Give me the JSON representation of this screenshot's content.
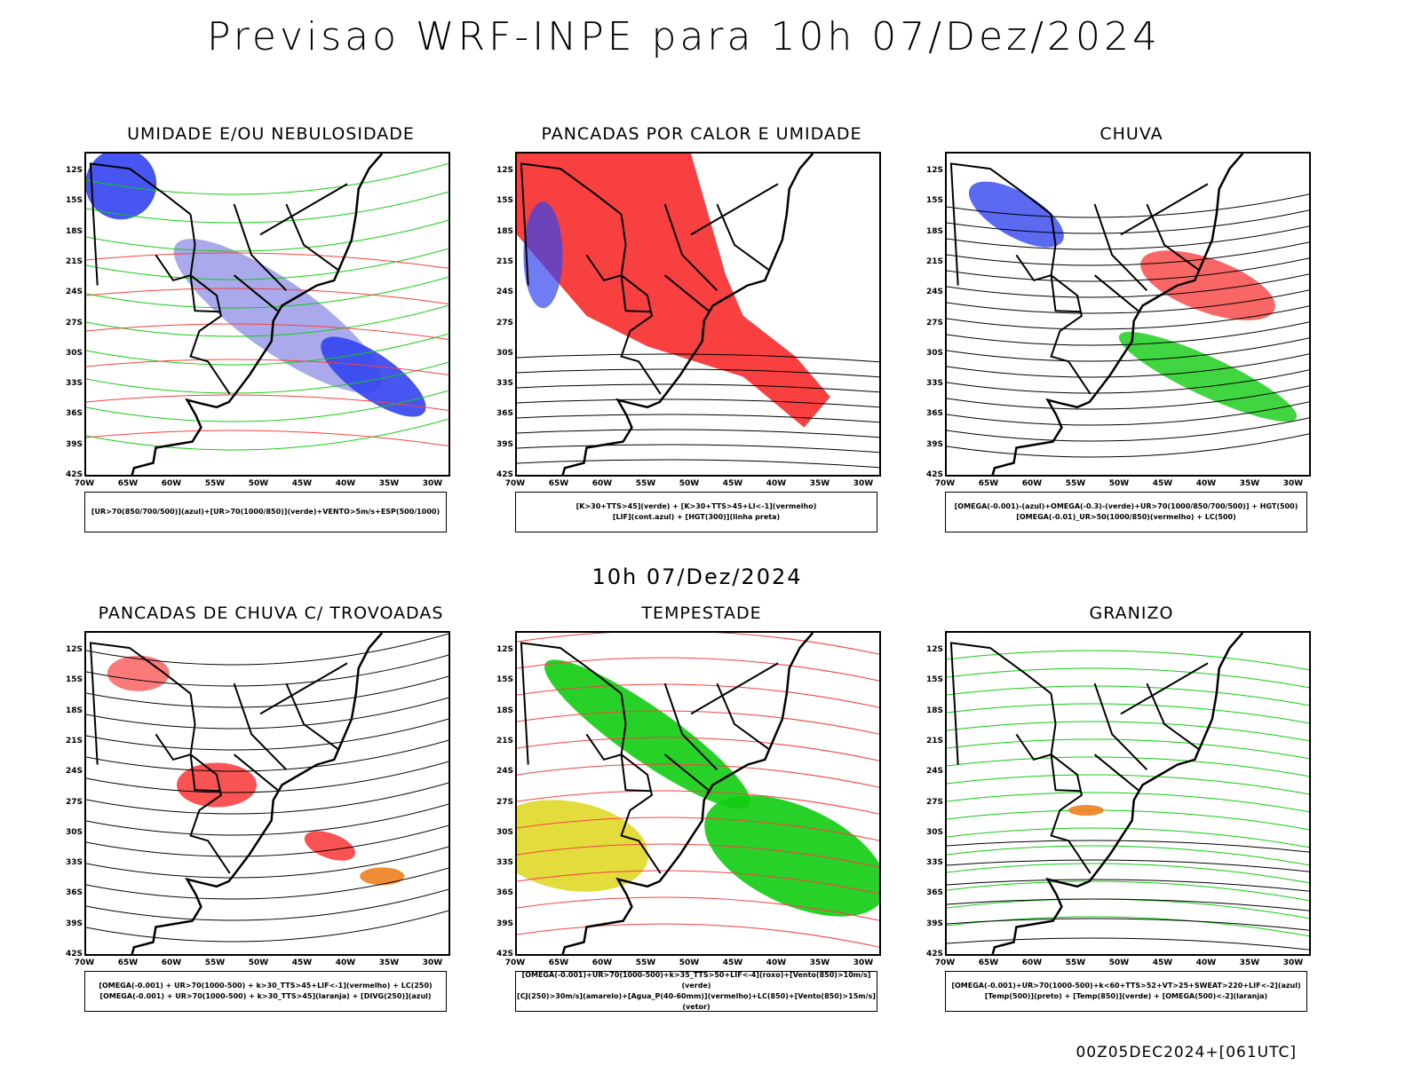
{
  "header": {
    "title": "Previsao WRF-INPE  para 10h 07/Dez/2024",
    "mid_title": "10h 07/Dez/2024",
    "footer": "00Z05DEC2024+[061UTC]"
  },
  "axes": {
    "lat_labels": [
      "12S",
      "15S",
      "18S",
      "21S",
      "24S",
      "27S",
      "30S",
      "33S",
      "36S",
      "39S",
      "42S"
    ],
    "lon_labels": [
      "70W",
      "65W",
      "60W",
      "55W",
      "50W",
      "45W",
      "40W",
      "35W",
      "30W"
    ]
  },
  "colors": {
    "azul": "#3344ee",
    "azul_claro": "#9a9ae8",
    "verde": "#11cc11",
    "vermelho": "#f84040",
    "laranja": "#f08020",
    "amarelo": "#e0d828",
    "roxo": "#aa22cc",
    "verde_escuro": "#2f5f5a"
  },
  "panels": [
    {
      "title": "UMIDADE E/OU NEBULOSIDADE",
      "legend": [
        "[UR>70(850/700/500)](azul)+[UR>70(1000/850)](verde)+VENTO>5m/s+ESP(500/1000)"
      ]
    },
    {
      "title": "PANCADAS POR CALOR E UMIDADE",
      "legend": [
        "[K>30+TTS>45](verde) + [K>30+TTS>45+LI<-1](vermelho)",
        "[LIF](cont.azul) + [HGT(300)](linha preta)"
      ]
    },
    {
      "title": "CHUVA",
      "legend": [
        "[OMEGA(-0.001)-(azul)+OMEGA(-0.3)-(verde)+UR>70(1000/850/700/500)] + HGT(500)",
        "[OMEGA(-0.01)_UR>50(1000/850)(vermelho) + LC(500)"
      ]
    },
    {
      "title": "PANCADAS DE CHUVA C/ TROVOADAS",
      "legend": [
        "[OMEGA(-0.001) + UR>70(1000-500) + k>30_TTS>45+LIF<-1](vermelho) + LC(250)",
        "[OMEGA(-0.001) + UR>70(1000-500) + k>30_TTS>45](laranja) + [DIVG(250)](azul)"
      ]
    },
    {
      "title": "TEMPESTADE",
      "legend": [
        "[OMEGA(-0.001)+UR>70(1000-500)+k>35_TTS>50+LIF<-4](roxo)+[Vento(850)>10m/s](verde)",
        "[CJ(250)>30m/s](amarelo)+[Agua_P(40-60mm)](vermelho)+LC(850)+[Vento(850)>15m/s](vetor)"
      ]
    },
    {
      "title": "GRANIZO",
      "legend": [
        "[OMEGA(-0.001)+UR>70(1000-500)+k<60+TTS>52+VT>25+SWEAT>220+LIF<-2](azul)",
        "[Temp(500)](preto) + [Temp(850)](verde) + [OMEGA(500)<-2](laranja)"
      ]
    }
  ]
}
